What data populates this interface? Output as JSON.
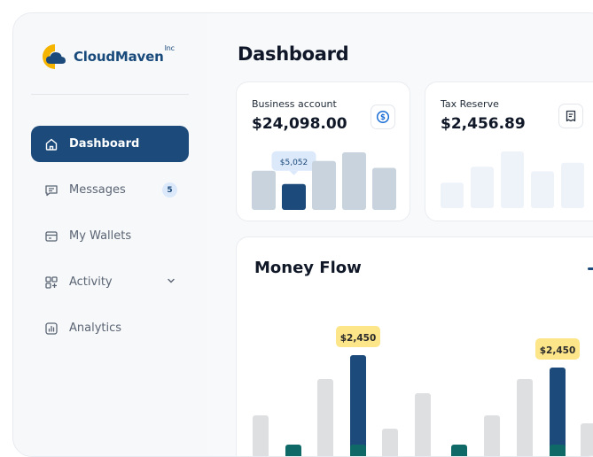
{
  "app": {
    "brand": "CloudMaven",
    "brand_suffix": "Inc"
  },
  "sidebar": {
    "items": [
      {
        "label": "Dashboard",
        "icon": "home-icon",
        "active": true
      },
      {
        "label": "Messages",
        "icon": "message-icon",
        "badge": "5"
      },
      {
        "label": "My Wallets",
        "icon": "wallet-icon"
      },
      {
        "label": "Activity",
        "icon": "activity-icon",
        "expandable": true
      },
      {
        "label": "Analytics",
        "icon": "analytics-icon"
      }
    ]
  },
  "main": {
    "title": "Dashboard"
  },
  "cards": {
    "business": {
      "label": "Business account",
      "value": "$24,098.00",
      "icon": "dollar-circle-icon",
      "tooltip": "$5,052",
      "bar_levels": [
        0.68,
        0.45,
        0.85,
        1.0,
        0.73
      ],
      "highlight_index": 1
    },
    "tax": {
      "label": "Tax Reserve",
      "value": "$2,456.89",
      "icon": "receipt-icon",
      "bar_levels": [
        0.45,
        0.73,
        1.0,
        0.65,
        0.8
      ]
    }
  },
  "money_flow": {
    "title": "Money Flow",
    "labels": [
      "$2,450",
      "$2,450"
    ],
    "colors": {
      "gray": "#dedfe1",
      "navy": "#1c4a7b",
      "teal": "#0f6a67",
      "label_bg": "#fde58a"
    }
  },
  "chart_data": {
    "type": "bar",
    "title": "Money Flow",
    "series": [
      {
        "values": [
          0.59,
          0,
          1.0,
          0,
          0.44,
          0.84,
          0,
          0.59,
          1.0,
          0
        ]
      },
      {
        "values": [
          0,
          0,
          0,
          1.27,
          0,
          0,
          0,
          0,
          0,
          1.13
        ]
      },
      {
        "values": [
          0,
          0.26,
          0,
          0.26,
          0,
          0,
          0.26,
          0,
          0,
          0.26
        ]
      }
    ],
    "point_labels": [
      {
        "index": 3,
        "text": "$2,450"
      },
      {
        "index": 9,
        "text": "$2,450"
      }
    ]
  }
}
